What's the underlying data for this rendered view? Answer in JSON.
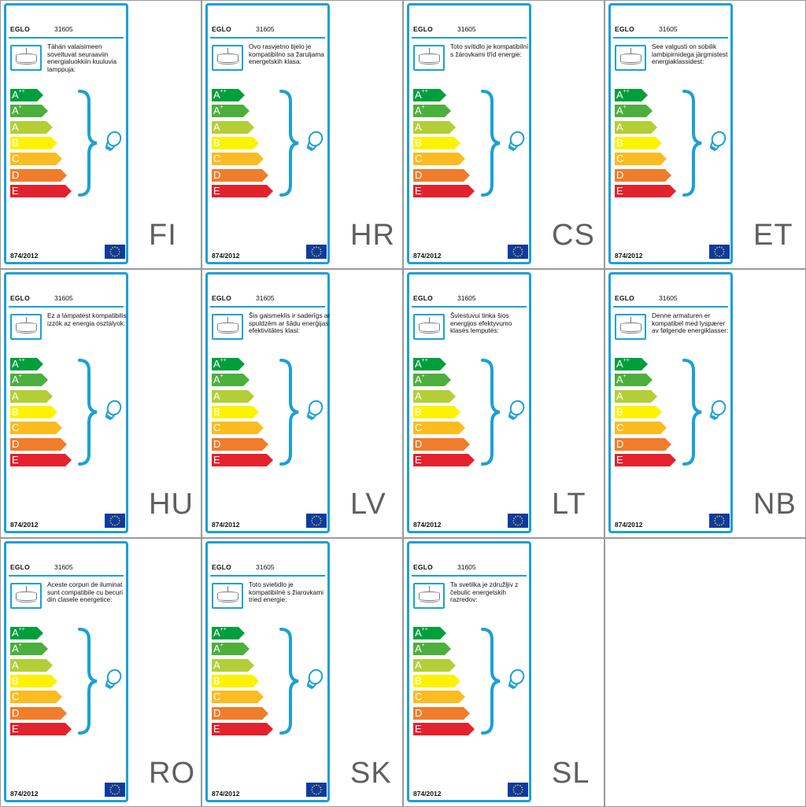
{
  "brand": "EGLO",
  "model": "31605",
  "regulation": "874/2012",
  "classes": [
    "A",
    "A",
    "A",
    "B",
    "C",
    "D",
    "E"
  ],
  "class_superscripts": [
    "++",
    "+",
    "",
    "",
    "",
    "",
    ""
  ],
  "class_colors": [
    "#009f3c",
    "#4caf3b",
    "#b3ce36",
    "#fdf200",
    "#fbbb21",
    "#ef7d2c",
    "#e4222e"
  ],
  "accent_color": "#1ba0d8",
  "icons": {
    "luminaire": "ceiling-lamp-icon",
    "bulb": "light-bulb-icon",
    "brace": "curly-brace-icon",
    "eu_flag": "eu-flag-icon"
  },
  "labels": [
    {
      "lang": "FI",
      "text": "Tähän valaisimeen soveltuvat seuraaviin energialuokkiin kuuluvia lamppuja:"
    },
    {
      "lang": "HR",
      "text": "Ovo rasvjetno tijelo je kompatibilno sa žaruljama energetskih klasa:"
    },
    {
      "lang": "CS",
      "text": "Toto svítidlo je kompatibilní s žárovkami tříd energie:"
    },
    {
      "lang": "ET",
      "text": "See valgusti on sobilik lambipirnidega järgmistest energiaklassidest:"
    },
    {
      "lang": "HU",
      "text": "Ez a lámpatest kompatibilis izzók az energia osztályok:"
    },
    {
      "lang": "LV",
      "text": "Šis gaismeklis ir saderīgs ar spuldzēm ar šādu enerģijas efektivitātes klasi:"
    },
    {
      "lang": "LT",
      "text": "Šviestuvui tinka šios energijos efektyvumo klasės lemputės:"
    },
    {
      "lang": "NB",
      "text": "Denne armaturen er kompatibel med lyspærer av følgende energiklasser:"
    },
    {
      "lang": "RO",
      "text": "Aceste corpuri de iluminat sunt compatibile cu becuri din clasele energetice:"
    },
    {
      "lang": "SK",
      "text": "Toto svietidlo je kompatibilné s žiarovkami tried energie:"
    },
    {
      "lang": "SL",
      "text": "Ta svetilka je združljiv z čebulic energetskih razredov:"
    }
  ]
}
